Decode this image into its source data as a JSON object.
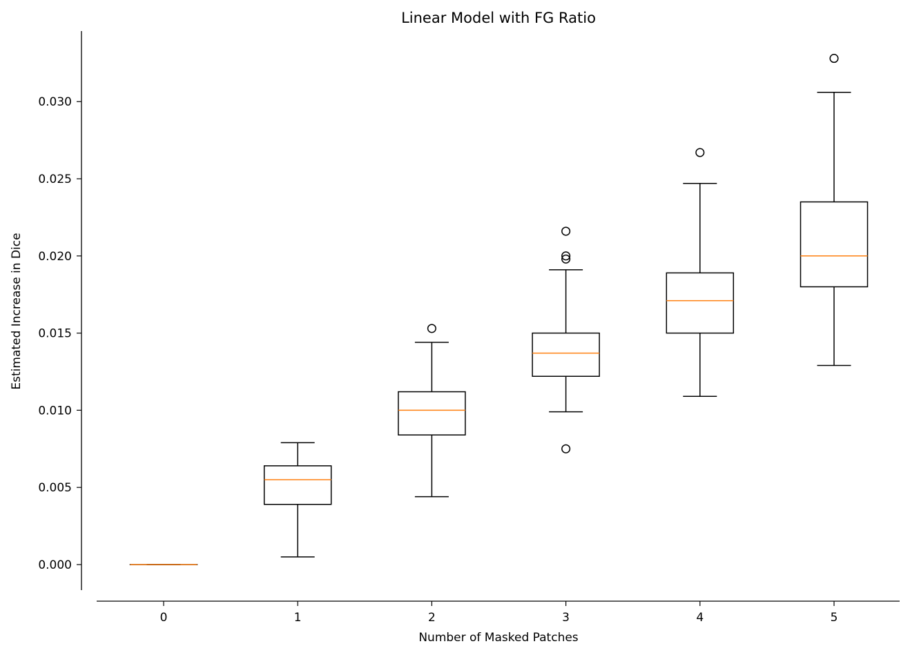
{
  "chart_data": {
    "type": "boxplot",
    "title": "Linear Model with FG Ratio",
    "xlabel": "Number of Masked Patches",
    "ylabel": "Estimated Increase in Dice",
    "categories": [
      "0",
      "1",
      "2",
      "3",
      "4",
      "5"
    ],
    "ylim": [
      -0.0017,
      0.0343
    ],
    "yticks": [
      "0.000",
      "0.005",
      "0.010",
      "0.015",
      "0.020",
      "0.025",
      "0.030"
    ],
    "grid": false,
    "boxes": [
      {
        "category": "0",
        "whisker_low": 0.0,
        "q1": 0.0,
        "median": 0.0,
        "q3": 0.0,
        "whisker_high": 0.0,
        "outliers": []
      },
      {
        "category": "1",
        "whisker_low": 0.0005,
        "q1": 0.0039,
        "median": 0.0055,
        "q3": 0.0064,
        "whisker_high": 0.0079,
        "outliers": []
      },
      {
        "category": "2",
        "whisker_low": 0.0044,
        "q1": 0.0084,
        "median": 0.01,
        "q3": 0.0112,
        "whisker_high": 0.0144,
        "outliers": [
          0.0153
        ]
      },
      {
        "category": "3",
        "whisker_low": 0.0099,
        "q1": 0.0122,
        "median": 0.0137,
        "q3": 0.015,
        "whisker_high": 0.0191,
        "outliers": [
          0.0075,
          0.0198,
          0.02,
          0.0216
        ]
      },
      {
        "category": "4",
        "whisker_low": 0.0109,
        "q1": 0.015,
        "median": 0.0171,
        "q3": 0.0189,
        "whisker_high": 0.0247,
        "outliers": [
          0.0267
        ]
      },
      {
        "category": "5",
        "whisker_low": 0.0129,
        "q1": 0.018,
        "median": 0.02,
        "q3": 0.0235,
        "whisker_high": 0.0306,
        "outliers": [
          0.0328
        ]
      }
    ],
    "colors": {
      "box": "#000000",
      "median": "#ff7f0e"
    }
  }
}
